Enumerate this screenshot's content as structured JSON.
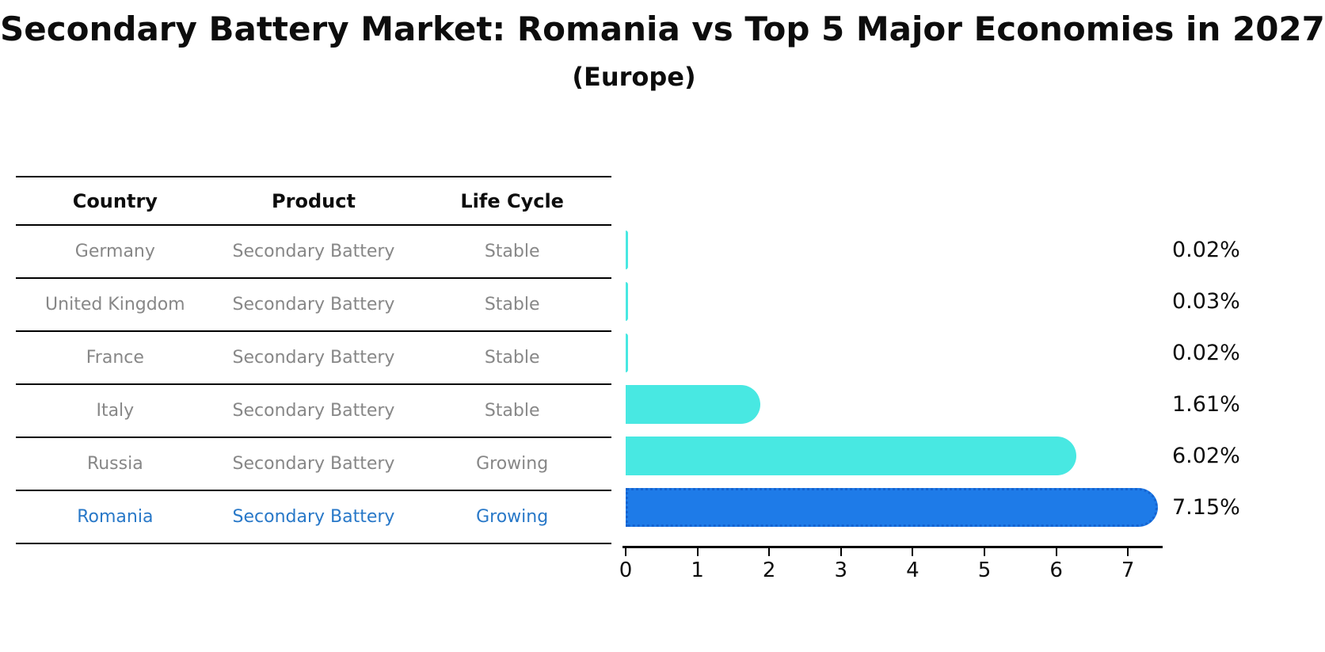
{
  "title": "Secondary Battery Market: Romania vs Top 5 Major Economies in 2027",
  "subtitle": "(Europe)",
  "table": {
    "headers": [
      "Country",
      "Product",
      "Life Cycle"
    ],
    "rows": [
      {
        "country": "Germany",
        "product": "Secondary Battery",
        "life_cycle": "Stable",
        "highlighted": false
      },
      {
        "country": "United Kingdom",
        "product": "Secondary Battery",
        "life_cycle": "Stable",
        "highlighted": false
      },
      {
        "country": "France",
        "product": "Secondary Battery",
        "life_cycle": "Stable",
        "highlighted": false
      },
      {
        "country": "Italy",
        "product": "Secondary Battery",
        "life_cycle": "Stable",
        "highlighted": false
      },
      {
        "country": "Russia",
        "product": "Secondary Battery",
        "life_cycle": "Growing",
        "highlighted": false
      },
      {
        "country": "Romania",
        "product": "Secondary Battery",
        "life_cycle": "Growing",
        "highlighted": true
      }
    ]
  },
  "chart_data": {
    "type": "bar",
    "orientation": "horizontal",
    "title": "Secondary Battery Market: Romania vs Top 5 Major Economies in 2027",
    "subtitle": "(Europe)",
    "categories": [
      "Germany",
      "United Kingdom",
      "France",
      "Italy",
      "Russia",
      "Romania"
    ],
    "values": [
      0.02,
      0.03,
      0.02,
      1.61,
      6.02,
      7.15
    ],
    "value_labels": [
      "0.02%",
      "0.03%",
      "0.02%",
      "1.61%",
      "6.02%",
      "7.15%"
    ],
    "x_ticks": [
      0,
      1,
      2,
      3,
      4,
      5,
      6,
      7
    ],
    "xlim": [
      0,
      7.5
    ],
    "grid": false,
    "legend_position": "none",
    "highlight_index": 5
  },
  "colors": {
    "bar_default": "#48E8E2",
    "bar_highlight": "#1E7BE8",
    "bar_highlight_edge": "#1563D0",
    "row_text": "#878787",
    "highlight_text": "#2878C8",
    "axis": "#000000",
    "background": "#ffffff"
  }
}
